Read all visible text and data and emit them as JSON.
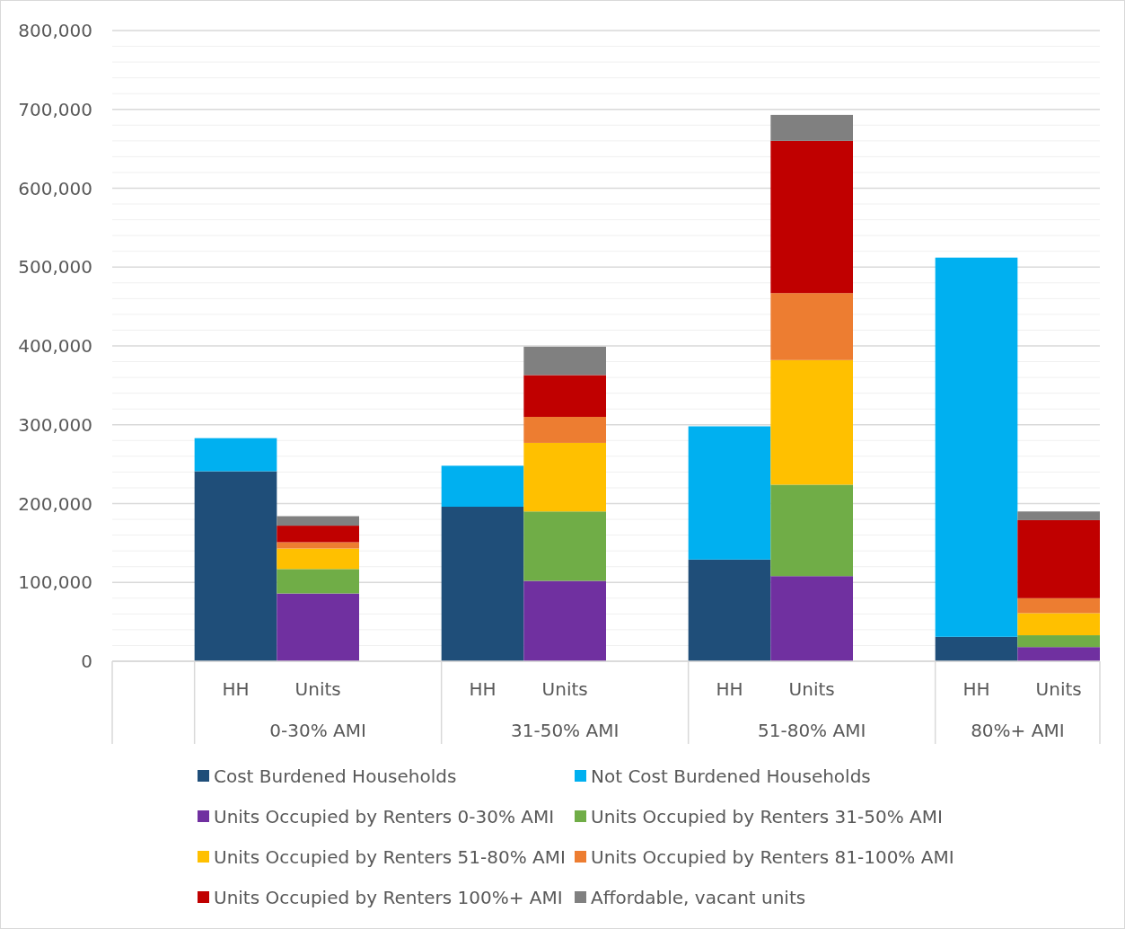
{
  "chart_data": {
    "type": "bar",
    "stacked": true,
    "categories": [
      null,
      "HH",
      "Units",
      null,
      "HH",
      "Units",
      null,
      "HH",
      "Units",
      null,
      "HH",
      "Units"
    ],
    "series": [
      {
        "name": "Cost Burdened Households",
        "color": "#1f4e79",
        "values": [
          null,
          241000,
          null,
          null,
          196000,
          null,
          null,
          129000,
          null,
          null,
          31000,
          null
        ]
      },
      {
        "name": "Not Cost Burdened Households",
        "color": "#00b0f0",
        "values": [
          null,
          42000,
          null,
          null,
          52000,
          null,
          null,
          169000,
          null,
          null,
          481000,
          null
        ]
      },
      {
        "name": "Units Occupied by Renters 0-30% AMI",
        "color": "#7030a0",
        "values": [
          null,
          null,
          86000,
          null,
          null,
          102000,
          null,
          null,
          108000,
          null,
          null,
          18000
        ]
      },
      {
        "name": "Units Occupied by Renters 31-50% AMI",
        "color": "#70ad47",
        "values": [
          null,
          null,
          31000,
          null,
          null,
          88000,
          null,
          null,
          116000,
          null,
          null,
          15000
        ]
      },
      {
        "name": "Units Occupied by Renters 51-80% AMI",
        "color": "#ffc000",
        "values": [
          null,
          null,
          26000,
          null,
          null,
          87000,
          null,
          null,
          158000,
          null,
          null,
          28000
        ]
      },
      {
        "name": "Units Occupied by Renters 81-100% AMI",
        "color": "#ed7d31",
        "values": [
          null,
          null,
          8000,
          null,
          null,
          33000,
          null,
          null,
          85000,
          null,
          null,
          19000
        ]
      },
      {
        "name": "Units Occupied by Renters 100%+ AMI",
        "color": "#c00000",
        "values": [
          null,
          null,
          21000,
          null,
          null,
          53000,
          null,
          null,
          193000,
          null,
          null,
          99000
        ]
      },
      {
        "name": "Affordable, vacant units",
        "color": "#808080",
        "values": [
          null,
          null,
          12000,
          null,
          null,
          36000,
          null,
          null,
          33000,
          null,
          null,
          11000
        ]
      }
    ],
    "annotations": [
      "0-30% AMI",
      "31-50% AMI",
      "51-80% AMI",
      "80%+ AMI"
    ],
    "ylim": [
      0,
      800000
    ],
    "yticks": [
      "0",
      {
        "value": 20000,
        "label": null
      },
      {
        "value": 40000,
        "label": null
      },
      {
        "value": 60000,
        "label": null
      },
      {
        "value": 80000,
        "label": null
      },
      {
        "value": 100000,
        "label": "100,000"
      },
      {
        "value": 120000,
        "label": null
      },
      {
        "value": 140000,
        "label": null
      },
      {
        "value": 160000,
        "label": null
      },
      {
        "value": 180000,
        "label": null
      },
      {
        "value": 200000,
        "label": "200,000"
      },
      {
        "value": 220000,
        "label": null
      },
      {
        "value": 240000,
        "label": null
      },
      {
        "value": 260000,
        "label": null
      },
      {
        "value": 280000,
        "label": null
      },
      {
        "value": 300000,
        "label": "300,000"
      },
      {
        "value": 320000,
        "label": null
      },
      {
        "value": 340000,
        "label": null
      },
      {
        "value": 360000,
        "label": null
      },
      {
        "value": 380000,
        "label": null
      },
      {
        "value": 400000,
        "label": "400,000"
      },
      {
        "value": 420000,
        "label": null
      },
      {
        "value": 440000,
        "label": null
      },
      {
        "value": 460000,
        "label": null
      },
      {
        "value": 480000,
        "label": null
      },
      {
        "value": 500000,
        "label": "500,000"
      },
      {
        "value": 520000,
        "label": null
      },
      {
        "value": 540000,
        "label": null
      },
      {
        "value": 560000,
        "label": null
      },
      {
        "value": 580000,
        "label": null
      },
      {
        "value": 600000,
        "label": "600,000"
      },
      {
        "value": 620000,
        "label": null
      },
      {
        "value": 640000,
        "label": null
      },
      {
        "value": 660000,
        "label": null
      },
      {
        "value": 680000,
        "label": null
      },
      {
        "value": 700000,
        "label": "700,000"
      },
      {
        "value": 720000,
        "label": null
      },
      {
        "value": 740000,
        "label": null
      },
      {
        "value": 760000,
        "label": null
      },
      {
        "value": 780000,
        "label": null
      },
      {
        "value": 800000,
        "label": "800,000"
      }
    ],
    "grid": true,
    "legend": "bottom"
  }
}
